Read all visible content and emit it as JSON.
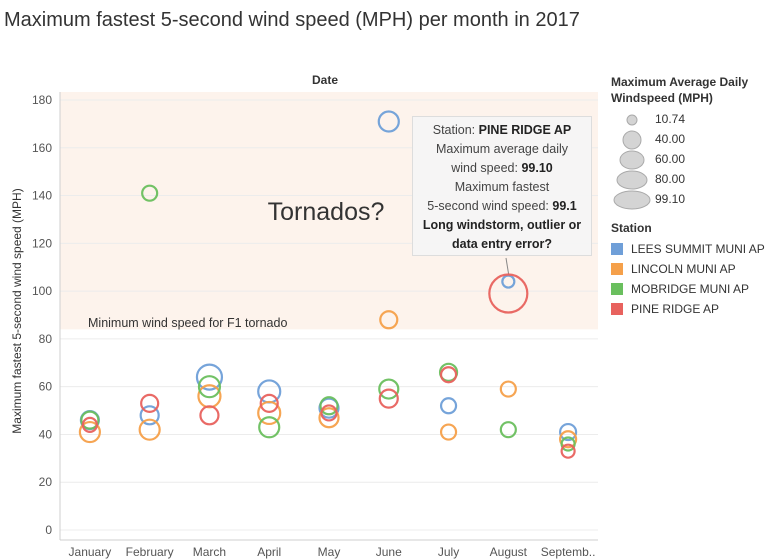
{
  "title": "Maximum fastest 5-second wind speed (MPH) per month in 2017",
  "chart_data": {
    "type": "scatter",
    "title": "Maximum fastest 5-second wind speed (MPH) per month in 2017",
    "xlabel": "Date",
    "ylabel": "Maximum fastest 5-second wind speed (MPH)",
    "ylim": [
      0,
      180
    ],
    "yticks": [
      0,
      20,
      40,
      60,
      80,
      100,
      120,
      140,
      160,
      180
    ],
    "categories": [
      "January",
      "February",
      "March",
      "April",
      "May",
      "June",
      "July",
      "August",
      "Septemb.."
    ],
    "grid": true,
    "legend": "right",
    "size_legend": {
      "title": "Maximum Average Daily Windspeed (MPH)",
      "labels": [
        "10.74",
        "40.00",
        "60.00",
        "80.00",
        "99.10"
      ],
      "values": [
        10.74,
        40,
        60,
        80,
        99.1
      ]
    },
    "color_legend_title": "Station",
    "series": [
      {
        "name": "LEES SUMMIT MUNI AP",
        "color": "#6f9fd8",
        "points": [
          {
            "x": "January",
            "y": 46,
            "size": 18
          },
          {
            "x": "February",
            "y": 48,
            "size": 18
          },
          {
            "x": "March",
            "y": 64,
            "size": 25
          },
          {
            "x": "April",
            "y": 58,
            "size": 22
          },
          {
            "x": "May",
            "y": 51,
            "size": 19
          },
          {
            "x": "June",
            "y": 171,
            "size": 20
          },
          {
            "x": "July",
            "y": 52,
            "size": 15
          },
          {
            "x": "August",
            "y": 104,
            "size": 12
          },
          {
            "x": "Septemb..",
            "y": 41,
            "size": 16
          }
        ]
      },
      {
        "name": "LINCOLN MUNI AP",
        "color": "#f5a04a",
        "points": [
          {
            "x": "January",
            "y": 41,
            "size": 20
          },
          {
            "x": "February",
            "y": 42,
            "size": 20
          },
          {
            "x": "March",
            "y": 56,
            "size": 22
          },
          {
            "x": "April",
            "y": 49,
            "size": 22
          },
          {
            "x": "May",
            "y": 47,
            "size": 19
          },
          {
            "x": "June",
            "y": 88,
            "size": 17
          },
          {
            "x": "July",
            "y": 41,
            "size": 15
          },
          {
            "x": "August",
            "y": 59,
            "size": 15
          },
          {
            "x": "Septemb..",
            "y": 38,
            "size": 16
          }
        ]
      },
      {
        "name": "MOBRIDGE MUNI AP",
        "color": "#6abf5e",
        "points": [
          {
            "x": "January",
            "y": 46,
            "size": 17
          },
          {
            "x": "February",
            "y": 141,
            "size": 15
          },
          {
            "x": "March",
            "y": 60,
            "size": 21
          },
          {
            "x": "April",
            "y": 43,
            "size": 20
          },
          {
            "x": "May",
            "y": 52,
            "size": 17
          },
          {
            "x": "June",
            "y": 59,
            "size": 19
          },
          {
            "x": "July",
            "y": 66,
            "size": 17
          },
          {
            "x": "August",
            "y": 42,
            "size": 15
          },
          {
            "x": "Septemb..",
            "y": 36,
            "size": 13
          }
        ]
      },
      {
        "name": "PINE RIDGE AP",
        "color": "#e8625e",
        "points": [
          {
            "x": "January",
            "y": 44,
            "size": 14
          },
          {
            "x": "February",
            "y": 53,
            "size": 17
          },
          {
            "x": "March",
            "y": 48,
            "size": 18
          },
          {
            "x": "April",
            "y": 53,
            "size": 17
          },
          {
            "x": "May",
            "y": 49,
            "size": 15
          },
          {
            "x": "June",
            "y": 55,
            "size": 18
          },
          {
            "x": "July",
            "y": 65,
            "size": 15
          },
          {
            "x": "August",
            "y": 99,
            "size": 38
          },
          {
            "x": "Septemb..",
            "y": 33,
            "size": 13
          }
        ]
      }
    ],
    "reference_band": {
      "from": 84,
      "to": 180,
      "color": "#fdf3ec"
    },
    "annotations": {
      "tornados": "Tornados?",
      "f1_label": "Minimum wind speed for F1 tornado"
    }
  },
  "tooltip": {
    "station_label": "Station:",
    "station_value": "PINE RIDGE AP",
    "avg_label_1": "Maximum average daily",
    "avg_label_2": "wind speed:",
    "avg_value": "99.10",
    "max_label_1": "Maximum fastest",
    "max_label_2": "5-second wind speed:",
    "max_value": "99.1",
    "note_1": "Long windstorm, outlier or",
    "note_2": "data entry error?"
  }
}
